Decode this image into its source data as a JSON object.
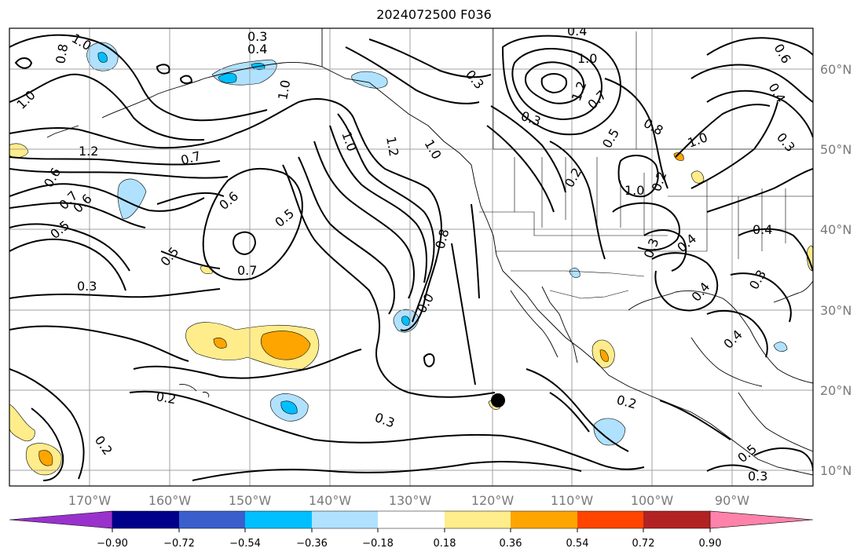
{
  "title": "2024072500 F036",
  "lon_labels": [
    "170°W",
    "160°W",
    "150°W",
    "140°W",
    "130°W",
    "120°W",
    "110°W",
    "100°W",
    "90°W"
  ],
  "lat_labels": [
    "60°N",
    "50°N",
    "40°N",
    "30°N",
    "20°N",
    "10°N"
  ],
  "contour_labels": [
    "1.0",
    "0.8",
    "0.3",
    "0.4",
    "0.3",
    "1.0",
    "0.4",
    "1.0",
    "0.6",
    "0.4",
    "1.0",
    "1.2",
    "0.7",
    "0.6",
    "0.6",
    "0.7",
    "0.5",
    "0.6",
    "0.5",
    "0.3",
    "0.5",
    "0.7",
    "1.0",
    "1.2",
    "1.0",
    "0.3",
    "1.2",
    "0.7",
    "0.5",
    "0.2",
    "1.0",
    "0.8",
    "1.0",
    "0.3",
    "0.8",
    "0.2",
    "0.3",
    "0.4",
    "0.4",
    "0.3",
    "0.4",
    "0.4",
    "0.0",
    "0.2",
    "0.3",
    "0.2",
    "0.2",
    "0.5",
    "0.3"
  ],
  "colorbar": {
    "colors": [
      "#9932cc",
      "#00008b",
      "#3a5fcd",
      "#00bfff",
      "#b0e2ff",
      "#ffffff",
      "#ffec8b",
      "#ffa500",
      "#ff4500",
      "#b22222",
      "#ff82ab"
    ],
    "ticks": [
      "−0.90",
      "−0.72",
      "−0.54",
      "−0.36",
      "−0.18",
      "0.18",
      "0.36",
      "0.54",
      "0.72",
      "0.90"
    ]
  },
  "markers": [
    {
      "name": "low-center-dot",
      "color": "#000000"
    }
  ]
}
